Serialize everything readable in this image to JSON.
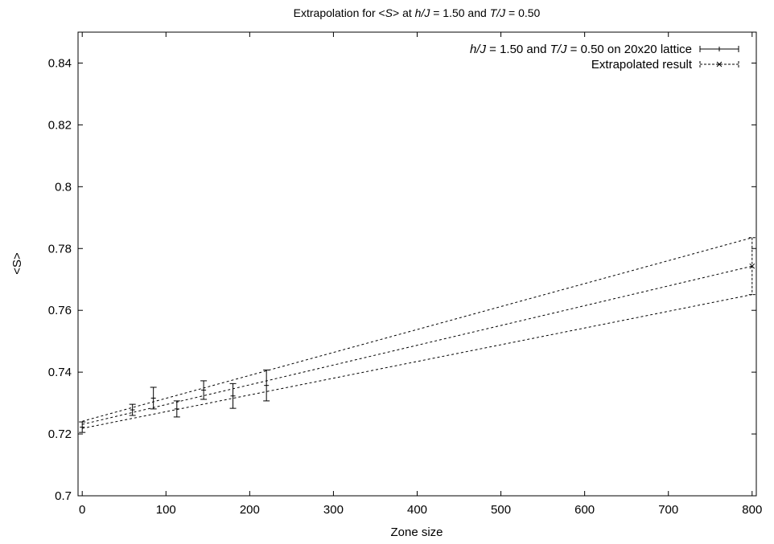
{
  "chart_data": {
    "type": "scatter",
    "title_parts": [
      {
        "text": "Extrapolation for <",
        "italic": false
      },
      {
        "text": "S",
        "italic": true
      },
      {
        "text": "> at ",
        "italic": false
      },
      {
        "text": "h/J",
        "italic": true
      },
      {
        "text": " = 1.50 and ",
        "italic": false
      },
      {
        "text": "T/J",
        "italic": true
      },
      {
        "text": " = 0.50",
        "italic": false
      }
    ],
    "xlabel": "Zone size",
    "ylabel": "<S>",
    "xlim": [
      -5,
      805
    ],
    "ylim": [
      0.7,
      0.85
    ],
    "xticks": [
      0,
      100,
      200,
      300,
      400,
      500,
      600,
      700,
      800
    ],
    "yticks": [
      0.7,
      0.72,
      0.74,
      0.76,
      0.78,
      0.8,
      0.82,
      0.84
    ],
    "ytick_labels": [
      "0.7",
      "0.72",
      "0.74",
      "0.76",
      "0.78",
      "0.8",
      "0.82",
      "0.84"
    ],
    "legend_position": "top-right",
    "series": [
      {
        "name_parts": [
          {
            "text": "h/J",
            "italic": true
          },
          {
            "text": " = 1.50 and ",
            "italic": false
          },
          {
            "text": "T/J",
            "italic": true
          },
          {
            "text": " = 0.50 on 20x20 lattice",
            "italic": false
          }
        ],
        "style": "errorbars-plus",
        "points": [
          {
            "x": 0,
            "y": 0.7222,
            "err": 0.0017
          },
          {
            "x": 60,
            "y": 0.7278,
            "err": 0.0018
          },
          {
            "x": 85,
            "y": 0.7316,
            "err": 0.0035
          },
          {
            "x": 113,
            "y": 0.7281,
            "err": 0.0026
          },
          {
            "x": 145,
            "y": 0.7342,
            "err": 0.003
          },
          {
            "x": 180,
            "y": 0.7323,
            "err": 0.004
          },
          {
            "x": 220,
            "y": 0.7357,
            "err": 0.005
          }
        ]
      },
      {
        "name_parts": [
          {
            "text": "Extrapolated result",
            "italic": false
          }
        ],
        "style": "dashed-errorbars-x",
        "points": [
          {
            "x": 800,
            "y": 0.7743,
            "err": 0.0092
          }
        ]
      }
    ],
    "fit_lines": [
      {
        "x0": 0,
        "y0": 0.7241,
        "x1": 800,
        "y1": 0.7835
      },
      {
        "x0": 0,
        "y0": 0.7231,
        "x1": 800,
        "y1": 0.7743
      },
      {
        "x0": 0,
        "y0": 0.7218,
        "x1": 800,
        "y1": 0.7651
      }
    ]
  }
}
